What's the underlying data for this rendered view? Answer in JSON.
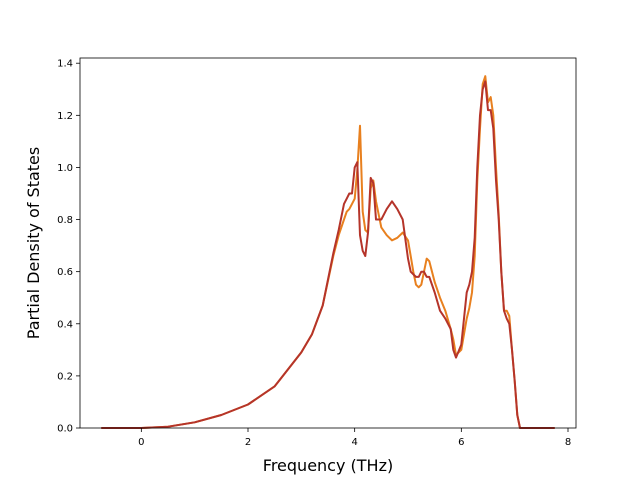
{
  "chart_data": {
    "type": "line",
    "title": "",
    "xlabel": "Frequency (THz)",
    "ylabel": "Partial Density of States",
    "xlim": [
      -1.15,
      8.15
    ],
    "ylim": [
      0.0,
      1.42
    ],
    "xticks": [
      0,
      2,
      4,
      6,
      8
    ],
    "xtick_labels": [
      "0",
      "2",
      "4",
      "6",
      "8"
    ],
    "yticks": [
      0.0,
      0.2,
      0.4,
      0.6,
      0.8,
      1.0,
      1.2,
      1.4
    ],
    "ytick_labels": [
      "0.0",
      "0.2",
      "0.4",
      "0.6",
      "0.8",
      "1.0",
      "1.2",
      "1.4"
    ],
    "grid": false,
    "series": [
      {
        "color": "#e8801f",
        "x": [
          -0.75,
          0.0,
          0.5,
          1.0,
          1.5,
          2.0,
          2.5,
          3.0,
          3.2,
          3.4,
          3.6,
          3.7,
          3.8,
          3.85,
          3.9,
          3.95,
          4.0,
          4.05,
          4.1,
          4.15,
          4.2,
          4.25,
          4.3,
          4.35,
          4.4,
          4.5,
          4.6,
          4.7,
          4.8,
          4.9,
          5.0,
          5.05,
          5.1,
          5.15,
          5.2,
          5.25,
          5.3,
          5.35,
          5.4,
          5.5,
          5.6,
          5.7,
          5.8,
          5.85,
          5.9,
          6.0,
          6.1,
          6.15,
          6.2,
          6.25,
          6.3,
          6.35,
          6.4,
          6.45,
          6.5,
          6.55,
          6.6,
          6.65,
          6.7,
          6.75,
          6.8,
          6.85,
          6.9,
          6.95,
          7.0,
          7.05,
          7.1,
          7.5,
          7.75
        ],
        "y": [
          0.0,
          0.0,
          0.005,
          0.022,
          0.05,
          0.09,
          0.16,
          0.29,
          0.36,
          0.47,
          0.66,
          0.74,
          0.8,
          0.83,
          0.84,
          0.86,
          0.88,
          0.99,
          1.16,
          0.83,
          0.76,
          0.75,
          0.92,
          0.95,
          0.87,
          0.77,
          0.74,
          0.72,
          0.73,
          0.75,
          0.72,
          0.66,
          0.6,
          0.55,
          0.54,
          0.55,
          0.6,
          0.65,
          0.64,
          0.56,
          0.5,
          0.45,
          0.38,
          0.34,
          0.28,
          0.3,
          0.42,
          0.46,
          0.52,
          0.66,
          0.95,
          1.15,
          1.32,
          1.35,
          1.25,
          1.27,
          1.2,
          1.0,
          0.82,
          0.6,
          0.45,
          0.45,
          0.43,
          0.3,
          0.18,
          0.05,
          0.0,
          0.0,
          0.0
        ]
      },
      {
        "color": "#b5342a",
        "x": [
          -0.75,
          0.0,
          0.5,
          1.0,
          1.5,
          2.0,
          2.5,
          3.0,
          3.2,
          3.4,
          3.6,
          3.7,
          3.8,
          3.85,
          3.9,
          3.95,
          4.0,
          4.05,
          4.1,
          4.15,
          4.2,
          4.25,
          4.3,
          4.35,
          4.4,
          4.5,
          4.6,
          4.7,
          4.8,
          4.9,
          5.0,
          5.05,
          5.1,
          5.15,
          5.2,
          5.25,
          5.3,
          5.35,
          5.4,
          5.5,
          5.6,
          5.7,
          5.8,
          5.85,
          5.9,
          6.0,
          6.1,
          6.15,
          6.2,
          6.25,
          6.3,
          6.35,
          6.4,
          6.45,
          6.5,
          6.55,
          6.6,
          6.65,
          6.7,
          6.75,
          6.8,
          6.85,
          6.9,
          6.95,
          7.0,
          7.05,
          7.1,
          7.5,
          7.75
        ],
        "y": [
          0.0,
          0.0,
          0.005,
          0.022,
          0.05,
          0.09,
          0.16,
          0.29,
          0.36,
          0.47,
          0.67,
          0.76,
          0.86,
          0.88,
          0.9,
          0.9,
          1.0,
          1.02,
          0.74,
          0.68,
          0.66,
          0.75,
          0.96,
          0.94,
          0.8,
          0.8,
          0.84,
          0.87,
          0.84,
          0.8,
          0.65,
          0.6,
          0.59,
          0.58,
          0.58,
          0.6,
          0.6,
          0.58,
          0.58,
          0.52,
          0.45,
          0.42,
          0.38,
          0.3,
          0.27,
          0.32,
          0.52,
          0.55,
          0.6,
          0.73,
          1.0,
          1.2,
          1.3,
          1.33,
          1.22,
          1.22,
          1.15,
          0.95,
          0.8,
          0.6,
          0.45,
          0.42,
          0.4,
          0.3,
          0.18,
          0.05,
          0.0,
          0.0,
          0.0
        ]
      }
    ]
  }
}
